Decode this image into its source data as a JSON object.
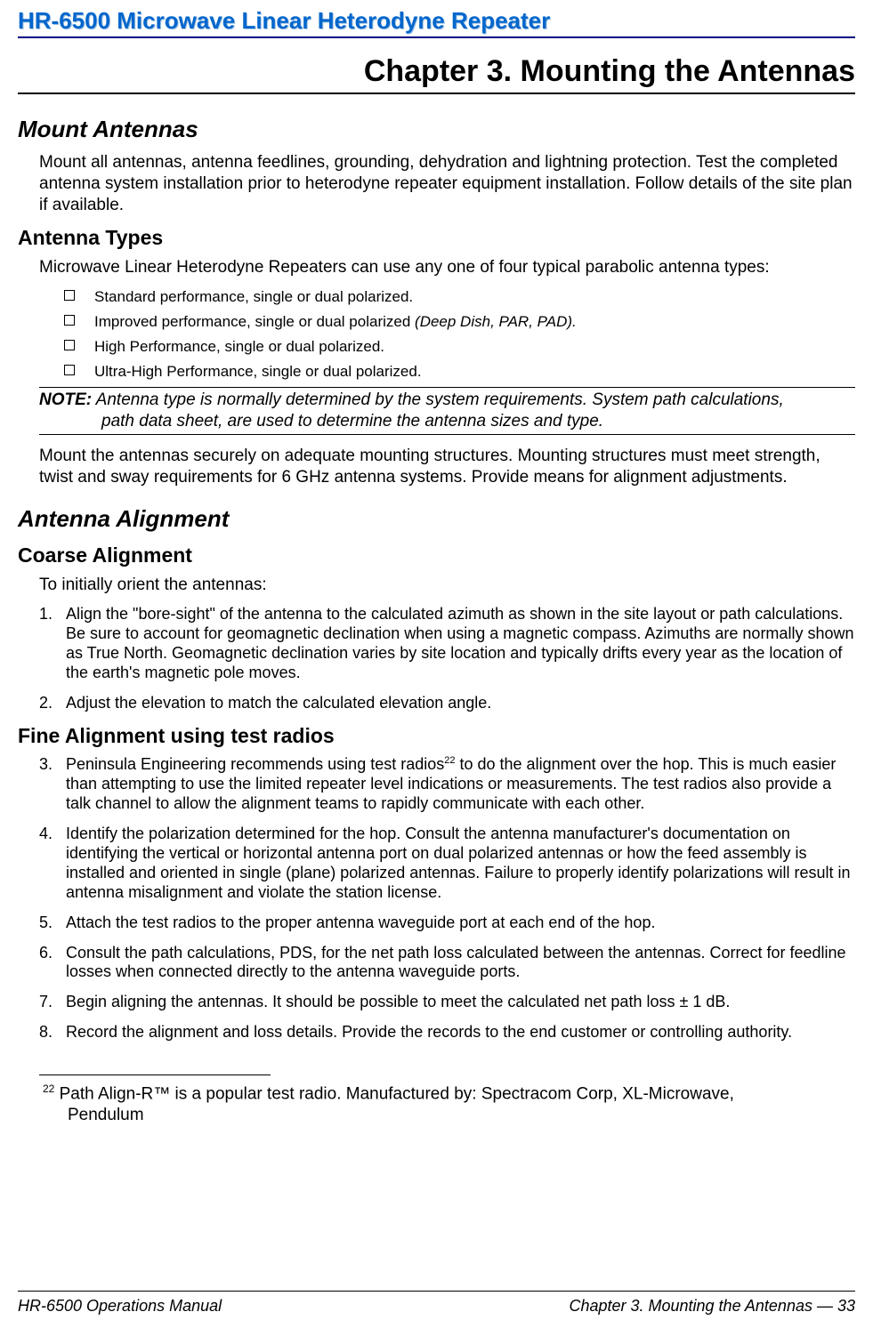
{
  "header": {
    "title": "HR-6500 Microwave Linear Heterodyne Repeater"
  },
  "chapter": {
    "title": "Chapter 3.  Mounting the Antennas"
  },
  "sec_mount": {
    "title": "Mount Antennas",
    "para": "Mount all antennas, antenna feedlines, grounding, dehydration and lightning protection. Test the completed antenna system installation prior to heterodyne repeater equipment installation. Follow details of the site plan if available."
  },
  "sec_types": {
    "title": "Antenna Types",
    "para": "Microwave Linear Heterodyne Repeaters can use any one of four typical parabolic antenna types:",
    "bullets": {
      "b1": "Standard performance, single or dual polarized.",
      "b2_plain": "Improved performance, single or dual polarized ",
      "b2_italic": "(Deep Dish, PAR, PAD).",
      "b3": "High Performance, single or dual polarized.",
      "b4": "Ultra-High Performance, single or dual polarized."
    },
    "note": {
      "label": "NOTE:",
      "line1": " Antenna type is normally determined by the system requirements. System path calculations,",
      "line2": "path data sheet, are used to determine the antenna sizes and type."
    },
    "para2": "Mount the antennas securely on adequate mounting structures. Mounting structures must meet strength, twist and sway requirements for 6 GHz antenna systems. Provide means for alignment adjustments."
  },
  "sec_align": {
    "title": "Antenna Alignment"
  },
  "sec_coarse": {
    "title": "Coarse Alignment",
    "intro": "To initially orient the antennas:",
    "n1_label": "1.",
    "n1_text": "Align the \"bore-sight\" of the antenna to the calculated azimuth as shown in the site layout or path calculations. Be sure to account for geomagnetic declination when using a magnetic compass. Azimuths are normally shown as True North. Geomagnetic declination varies by site location and typically drifts every year as the location of the earth's magnetic pole moves.",
    "n2_label": "2.",
    "n2_text": "Adjust the elevation to match the calculated elevation angle."
  },
  "sec_fine": {
    "title": "Fine Alignment using test radios",
    "n3_label": "3.",
    "n3_a": "Peninsula Engineering recommends using test radios",
    "n3_sup": "22",
    "n3_b": " to do the alignment over the hop. This is much easier than attempting to use the limited repeater level indications or measurements. The test radios also provide a talk channel to allow the alignment teams to rapidly communicate with each other.",
    "n4_label": "4.",
    "n4_text": "Identify the polarization determined for the hop. Consult the antenna manufacturer's documentation on identifying the vertical or horizontal antenna port on dual polarized antennas or how the feed assembly is installed and oriented in single (plane) polarized antennas. Failure to properly identify polarizations will result in antenna misalignment and violate the station license.",
    "n5_label": "5.",
    "n5_text": "Attach the test radios to the proper antenna waveguide port at each end of the hop.",
    "n6_label": "6.",
    "n6_text": "Consult the path calculations, PDS, for the net path loss calculated between the antennas. Correct for feedline losses when connected directly to the antenna waveguide ports.",
    "n7_label": "7.",
    "n7_text": "Begin aligning the antennas. It should be possible to meet the calculated net path loss ± 1 dB.",
    "n8_label": "8.",
    "n8_text": "Record the alignment and loss details. Provide the records to the end customer or controlling authority."
  },
  "footnote": {
    "sup": "22",
    "line1": " Path Align-R™ is a popular test radio. Manufactured by: Spectracom Corp, XL-Microwave,",
    "line2": "Pendulum"
  },
  "footer": {
    "left": "HR-6500 Operations Manual",
    "right": "Chapter 3. Mounting the Antennas — 33"
  }
}
